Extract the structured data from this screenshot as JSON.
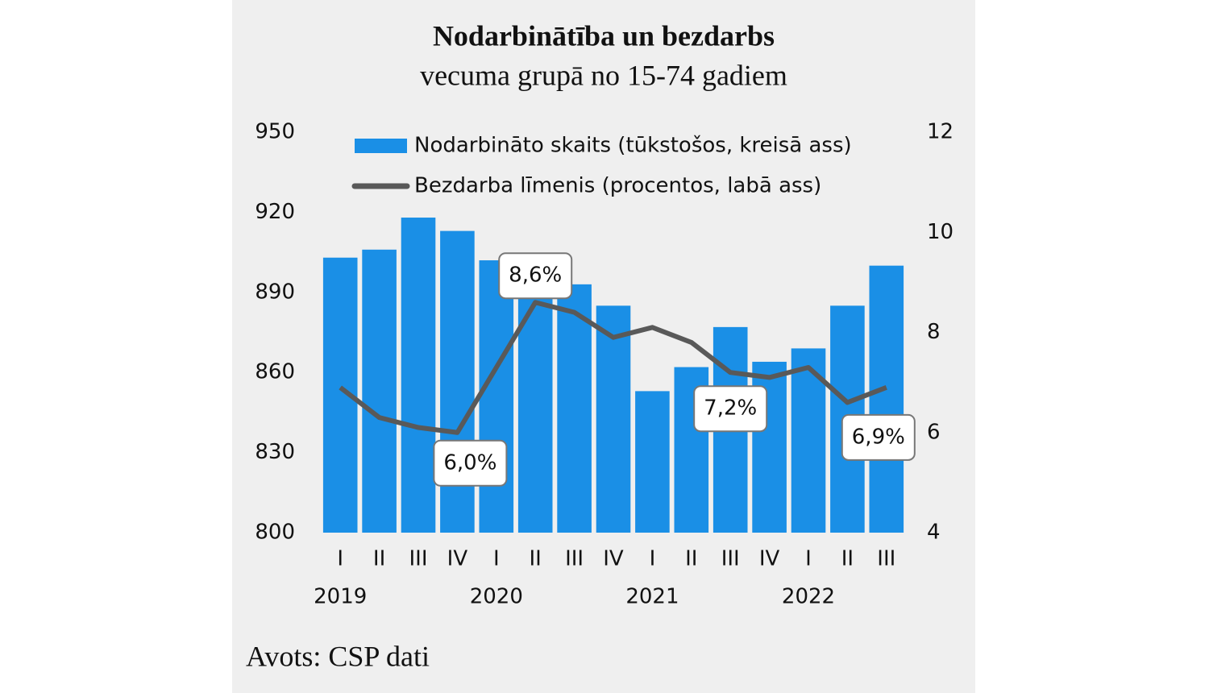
{
  "chart_data": {
    "type": "bar_line",
    "title": "Nodarbinātība un bezdarbs",
    "subtitle": "vecuma grupā no 15-74 gadiem",
    "source": "Avots: CSP dati",
    "categories": [
      "I",
      "II",
      "III",
      "IV",
      "I",
      "II",
      "III",
      "IV",
      "I",
      "II",
      "III",
      "IV",
      "I",
      "II",
      "III"
    ],
    "x_group_labels": [
      "2019",
      null,
      null,
      null,
      "2020",
      null,
      null,
      null,
      "2021",
      null,
      null,
      null,
      "2022",
      null,
      null
    ],
    "series": [
      {
        "name": "Nodarbināto skaits (tūkstošos, kreisā ass)",
        "type": "bar",
        "color": "#1a8fe6",
        "values": [
          903,
          906,
          918,
          913,
          902,
          889,
          893,
          885,
          853,
          862,
          877,
          864,
          869,
          885,
          900
        ]
      },
      {
        "name": "Bezdarba līmenis (procentos, labā ass)",
        "type": "line",
        "axis": "y2",
        "color": "#595959",
        "values": [
          6.9,
          6.3,
          6.1,
          6.0,
          7.3,
          8.6,
          8.4,
          7.9,
          8.1,
          7.8,
          7.2,
          7.1,
          7.3,
          6.6,
          6.9
        ],
        "value_labels": [
          null,
          null,
          null,
          "6,0%",
          null,
          "8,6%",
          null,
          null,
          null,
          null,
          "7,2%",
          null,
          null,
          null,
          "6,9%"
        ]
      }
    ],
    "ylim": [
      800,
      950
    ],
    "yticks": [
      800,
      830,
      860,
      890,
      920,
      950
    ],
    "y2lim": [
      4,
      12
    ],
    "y2ticks": [
      4,
      6,
      8,
      10,
      12
    ],
    "grid": false
  }
}
